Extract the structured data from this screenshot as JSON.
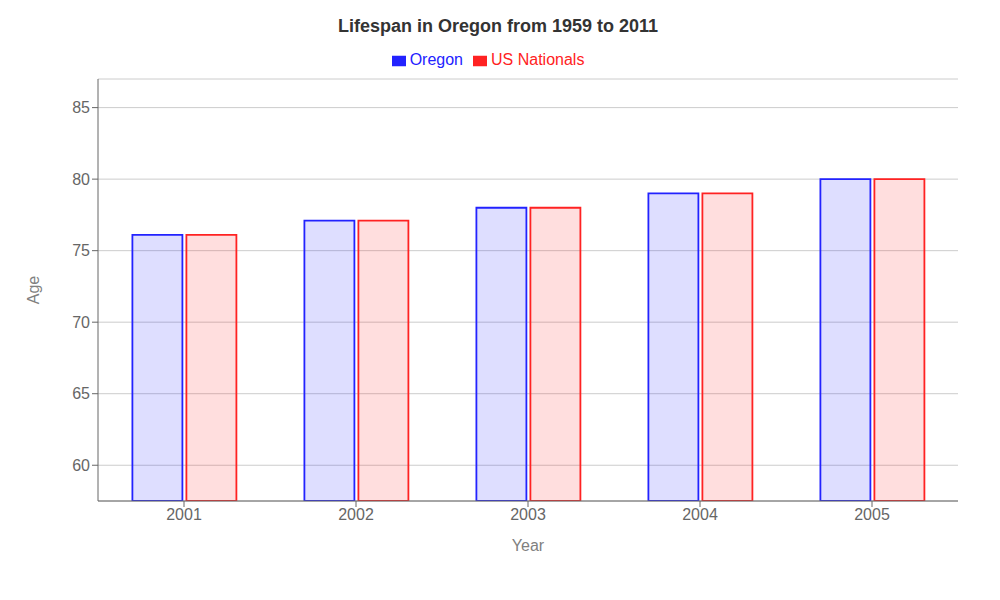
{
  "chart_data": {
    "type": "bar",
    "title": "Lifespan in Oregon from 1959 to 2011",
    "xlabel": "Year",
    "ylabel": "Age",
    "categories": [
      "2001",
      "2002",
      "2003",
      "2004",
      "2005"
    ],
    "series": [
      {
        "name": "Oregon",
        "color": "#2222ff",
        "values": [
          76.1,
          77.1,
          78.0,
          79.0,
          80.0
        ]
      },
      {
        "name": "US Nationals",
        "color": "#ff2222",
        "values": [
          76.1,
          77.1,
          78.0,
          79.0,
          80.0
        ]
      }
    ],
    "ylim": [
      57.5,
      87
    ],
    "yticks": [
      60,
      65,
      70,
      75,
      80,
      85
    ],
    "grid": true,
    "legend": "top"
  }
}
